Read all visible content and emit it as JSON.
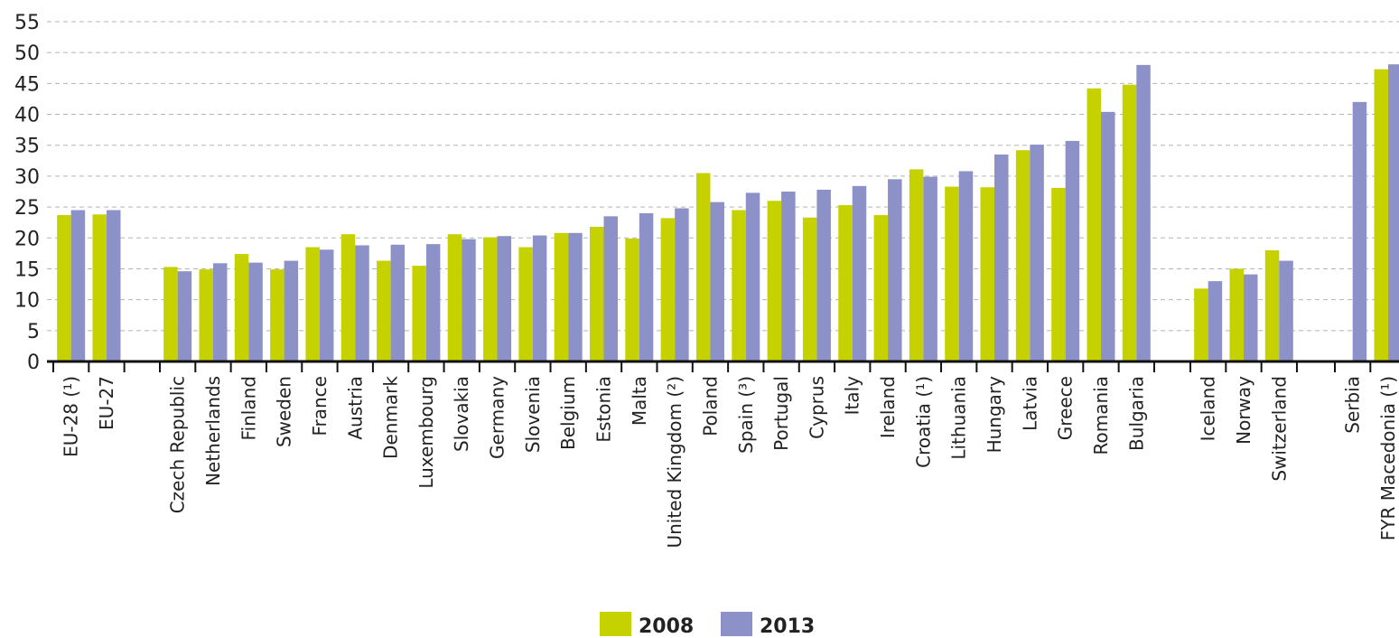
{
  "chart_data": {
    "type": "bar",
    "title": "",
    "xlabel": "",
    "ylabel": "",
    "ylim": [
      0,
      55
    ],
    "yticks": [
      0,
      5,
      10,
      15,
      20,
      25,
      30,
      35,
      40,
      45,
      50,
      55
    ],
    "grid": "horizontal dashed",
    "legend_position": "bottom-center",
    "colors": {
      "2008": "#c6d200",
      "2013": "#8c92c8"
    },
    "groups": [
      [
        "EU-28 (¹)",
        "EU-27"
      ],
      [
        "Czech Republic",
        "Netherlands",
        "Finland",
        "Sweden",
        "France",
        "Austria",
        "Denmark",
        "Luxembourg",
        "Slovakia",
        "Germany",
        "Slovenia",
        "Belgium",
        "Estonia",
        "Malta",
        "United Kingdom (²)",
        "Poland",
        "Spain (³)",
        "Portugal",
        "Cyprus",
        "Italy",
        "Ireland",
        "Croatia (¹)",
        "Lithuania",
        "Hungary",
        "Latvia",
        "Greece",
        "Romania",
        "Bulgaria"
      ],
      [
        "Iceland",
        "Norway",
        "Switzerland"
      ],
      [
        "Serbia",
        "FYR Macedonia (¹)"
      ]
    ],
    "categories": [
      "EU-28 (¹)",
      "EU-27",
      "Czech Republic",
      "Netherlands",
      "Finland",
      "Sweden",
      "France",
      "Austria",
      "Denmark",
      "Luxembourg",
      "Slovakia",
      "Germany",
      "Slovenia",
      "Belgium",
      "Estonia",
      "Malta",
      "United Kingdom (²)",
      "Poland",
      "Spain (³)",
      "Portugal",
      "Cyprus",
      "Italy",
      "Ireland",
      "Croatia (¹)",
      "Lithuania",
      "Hungary",
      "Latvia",
      "Greece",
      "Romania",
      "Bulgaria",
      "Iceland",
      "Norway",
      "Switzerland",
      "Serbia",
      "FYR Macedonia (¹)"
    ],
    "series": [
      {
        "name": "2008",
        "values": [
          23.7,
          23.8,
          15.3,
          14.9,
          17.4,
          14.9,
          18.5,
          20.6,
          16.3,
          15.5,
          20.6,
          20.1,
          18.5,
          20.8,
          21.8,
          19.9,
          23.2,
          30.5,
          24.5,
          26.0,
          23.3,
          25.3,
          23.7,
          31.1,
          28.3,
          28.2,
          34.2,
          28.1,
          44.2,
          44.8,
          11.8,
          15.0,
          18.0,
          null,
          47.3
        ]
      },
      {
        "name": "2013",
        "values": [
          24.5,
          24.5,
          14.6,
          15.9,
          16.0,
          16.3,
          18.1,
          18.8,
          18.9,
          19.0,
          19.8,
          20.3,
          20.4,
          20.8,
          23.5,
          24.0,
          24.8,
          25.8,
          27.3,
          27.5,
          27.8,
          28.4,
          29.5,
          29.9,
          30.8,
          33.5,
          35.1,
          35.7,
          40.4,
          48.0,
          13.0,
          14.1,
          16.3,
          42.0,
          48.1
        ]
      }
    ]
  },
  "legend": [
    {
      "label": "2008",
      "color": "#c6d200"
    },
    {
      "label": "2013",
      "color": "#8c92c8"
    }
  ]
}
